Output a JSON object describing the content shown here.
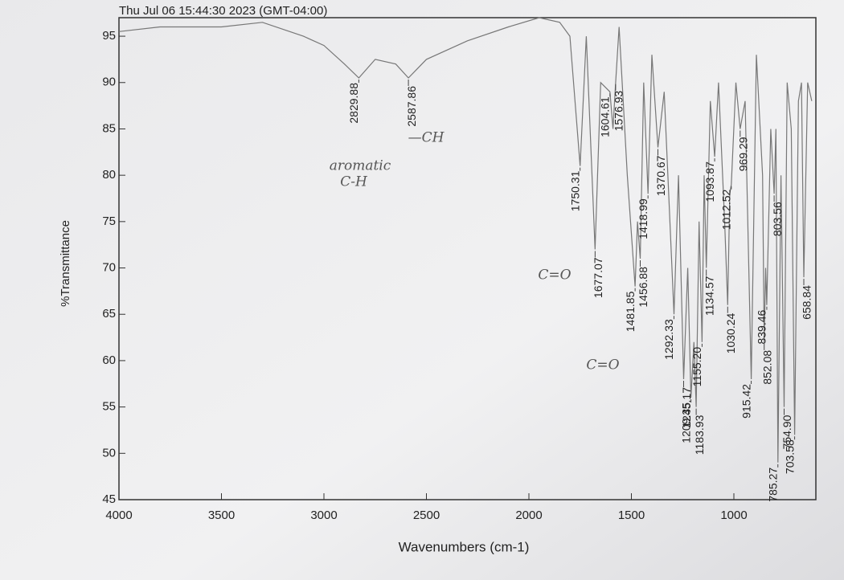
{
  "chart_data": {
    "type": "line",
    "title": "Thu Jul 06 15:44:30 2023 (GMT-04:00)",
    "x_label": "Wavenumbers (cm-1)",
    "y_label": "%Transmittance",
    "xlim": [
      4000,
      600
    ],
    "ylim": [
      45,
      97
    ],
    "xticks": [
      4000,
      3500,
      3000,
      2500,
      2000,
      1500,
      1000
    ],
    "yticks": [
      45,
      50,
      55,
      60,
      65,
      70,
      75,
      80,
      85,
      90,
      95
    ],
    "series": [
      {
        "color": "#777777",
        "x": [
          4000,
          3800,
          3500,
          3300,
          3100,
          3000,
          2900,
          2829.88,
          2750,
          2650,
          2587.86,
          2500,
          2300,
          2100,
          1950,
          1850,
          1800,
          1750.31,
          1720,
          1677.07,
          1650,
          1604.61,
          1590,
          1576.93,
          1560,
          1520,
          1481.85,
          1470,
          1456.88,
          1440,
          1418.99,
          1400,
          1370.67,
          1340,
          1292.33,
          1270,
          1245.17,
          1225,
          1209.35,
          1195,
          1183.93,
          1170,
          1155.2,
          1145,
          1134.57,
          1115,
          1093.87,
          1075,
          1045,
          1030.24,
          1020,
          1012.52,
          990,
          969.29,
          945,
          915.42,
          890,
          860,
          852.08,
          845,
          839.46,
          820,
          803.56,
          795,
          785.27,
          770,
          754.9,
          740,
          720,
          703.58,
          685,
          670,
          658.84,
          640,
          620
        ],
        "values": [
          95.5,
          96,
          96,
          96.5,
          95,
          94,
          92,
          90.5,
          92.5,
          92,
          90.5,
          92.5,
          94.5,
          96,
          97,
          96.5,
          95,
          81,
          95,
          72,
          90,
          89,
          85,
          90,
          96,
          80,
          68,
          75,
          71,
          90,
          78,
          93,
          83,
          89,
          65,
          80,
          58,
          70,
          56,
          62,
          55,
          75,
          62,
          80,
          70,
          88,
          82,
          90,
          75,
          66,
          78,
          79,
          90,
          85,
          88,
          58,
          93,
          80,
          62,
          70,
          66,
          85,
          78,
          85,
          49,
          80,
          55,
          90,
          85,
          52,
          88,
          90,
          69,
          90,
          88
        ]
      }
    ],
    "peaks": [
      {
        "value": 2829.88,
        "label": "2829.88"
      },
      {
        "value": 2587.86,
        "label": "2587.86"
      },
      {
        "value": 1750.31,
        "label": "1750.31"
      },
      {
        "value": 1677.07,
        "label": "1677.07"
      },
      {
        "value": 1604.61,
        "label": "1604.61"
      },
      {
        "value": 1576.93,
        "label": "1576.93"
      },
      {
        "value": 1481.85,
        "label": "1481.85"
      },
      {
        "value": 1456.88,
        "label": "1456.88"
      },
      {
        "value": 1418.99,
        "label": "1418.99"
      },
      {
        "value": 1370.67,
        "label": "1370.67"
      },
      {
        "value": 1292.33,
        "label": "1292.33"
      },
      {
        "value": 1245.17,
        "label": "1245.17"
      },
      {
        "value": 1209.35,
        "label": "1209.35"
      },
      {
        "value": 1183.93,
        "label": "1183.93"
      },
      {
        "value": 1155.2,
        "label": "1155.20"
      },
      {
        "value": 1134.57,
        "label": "1134.57"
      },
      {
        "value": 1093.87,
        "label": "1093.87"
      },
      {
        "value": 1030.24,
        "label": "1030.24"
      },
      {
        "value": 1012.52,
        "label": "1012.52"
      },
      {
        "value": 969.29,
        "label": "969.29"
      },
      {
        "value": 915.42,
        "label": "915.42"
      },
      {
        "value": 852.08,
        "label": "852.08"
      },
      {
        "value": 839.46,
        "label": "839.46"
      },
      {
        "value": 803.56,
        "label": "803.56"
      },
      {
        "value": 785.27,
        "label": "785.27"
      },
      {
        "value": 754.9,
        "label": "754.90"
      },
      {
        "value": 703.58,
        "label": "703.58"
      },
      {
        "value": 658.84,
        "label": "658.84"
      }
    ],
    "annotations": [
      "aromatic",
      "C-H",
      "—CH",
      "C=O",
      "C=O"
    ]
  }
}
